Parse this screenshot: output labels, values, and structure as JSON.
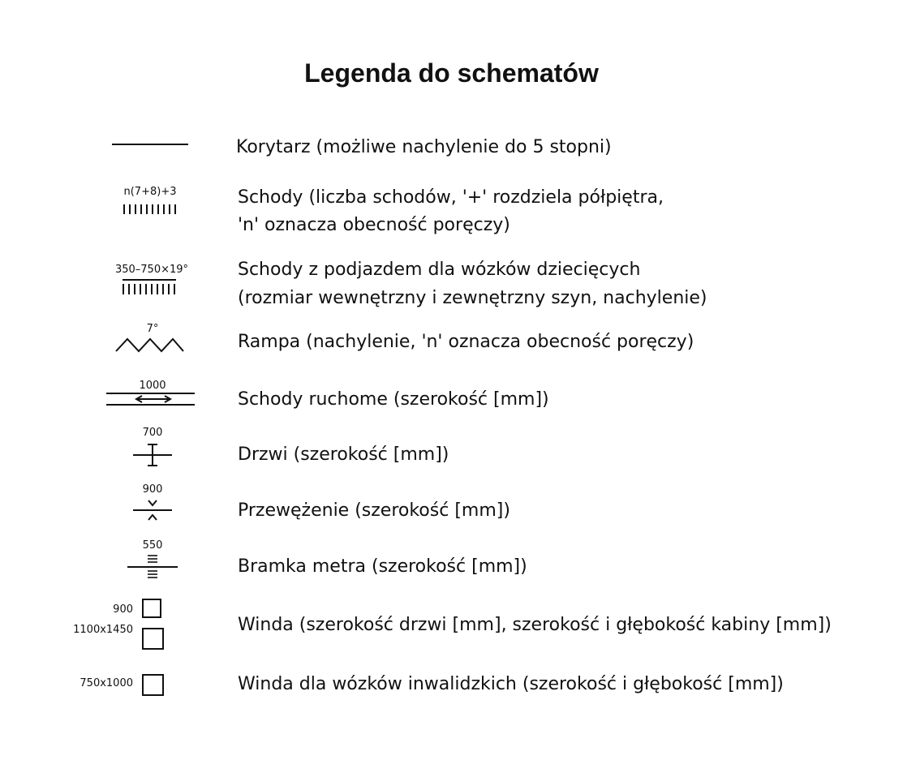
{
  "title": "Legenda do schematów",
  "items": [
    {
      "label": "Korytarz (możliwe nachylenie do 5 stopni)"
    },
    {
      "symbol_text": "n(7+8)+3",
      "label_lines": [
        "Schody (liczba schodów, '+' rozdziela półpiętra,",
        "'n' oznacza obecność poręczy)"
      ]
    },
    {
      "symbol_text": "350–750×19°",
      "label_lines": [
        "Schody z podjazdem dla wózków dziecięcych",
        "(rozmiar wewnętrzny i zewnętrzny szyn, nachylenie)"
      ]
    },
    {
      "symbol_text": "7°",
      "label": "Rampa (nachylenie, 'n' oznacza obecność poręczy)"
    },
    {
      "symbol_text": "1000",
      "label": "Schody ruchome (szerokość [mm])"
    },
    {
      "symbol_text": "700",
      "label": "Drzwi (szerokość [mm])"
    },
    {
      "symbol_text": "900",
      "label": "Przewężenie (szerokość [mm])"
    },
    {
      "symbol_text": "550",
      "label": "Bramka metra (szerokość [mm])"
    },
    {
      "symbol_texts": [
        "900",
        "1100x1450"
      ],
      "label": "Winda (szerokość drzwi [mm], szerokość i głębokość kabiny [mm])"
    },
    {
      "symbol_text": "750x1000",
      "label": "Winda dla wózków inwalidzkich (szerokość i głębokość [mm])"
    }
  ]
}
